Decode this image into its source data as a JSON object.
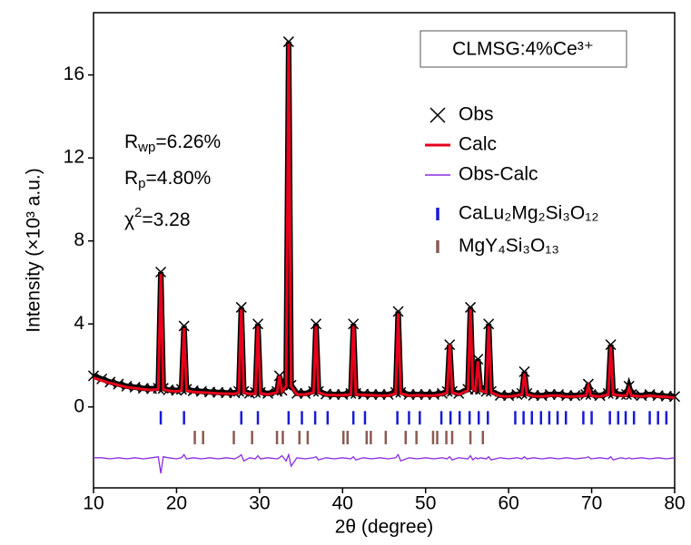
{
  "chart_data": {
    "type": "line",
    "xlabel": "2θ (degree)",
    "ylabel": "Intensity (×10³ a.u.)",
    "sample_label": "CLMSG:4%Ce³⁺",
    "annotations": [
      {
        "main": "R",
        "sub": "wp",
        "text": "=6.26%"
      },
      {
        "main": "R",
        "sub": "p",
        "text": "=4.80%"
      },
      {
        "main": "χ",
        "sup": "2",
        "text": "=3.28"
      }
    ],
    "xlim": [
      10,
      80
    ],
    "xticks": [
      10,
      20,
      30,
      40,
      50,
      60,
      70,
      80
    ],
    "ylim": [
      -3.9,
      19
    ],
    "yticks": [
      0,
      4,
      8,
      12,
      16
    ],
    "legend": "upper right",
    "x": [
      10,
      11,
      12,
      13,
      14,
      15,
      16,
      17,
      17.8,
      18.1,
      18.4,
      19,
      20,
      20.6,
      20.9,
      21.2,
      22,
      23,
      24,
      25,
      26,
      27,
      27.5,
      27.8,
      28.1,
      28.8,
      29.5,
      29.8,
      30.1,
      31,
      32.1,
      32.4,
      32.7,
      33.2,
      33.5,
      33.8,
      34.5,
      35.5,
      36.5,
      36.8,
      37.1,
      38,
      39,
      40,
      41,
      41.3,
      41.6,
      42.5,
      43.5,
      44.5,
      45.5,
      46.4,
      46.7,
      47,
      48,
      49,
      50,
      51,
      52,
      52.6,
      52.9,
      53.2,
      54,
      55.1,
      55.4,
      55.7,
      56,
      56.3,
      56.6,
      57.3,
      57.6,
      57.9,
      59,
      60,
      61,
      61.6,
      61.9,
      62.2,
      63,
      64,
      65,
      66,
      67,
      68,
      69.3,
      69.6,
      69.9,
      71,
      72,
      72.3,
      72.6,
      73.5,
      74.2,
      74.5,
      74.8,
      76,
      77,
      78,
      79,
      80
    ],
    "series": [
      {
        "name": "Obs",
        "color": "#000000",
        "marker": "x",
        "values": [
          1.5,
          1.35,
          1.2,
          1.1,
          1.0,
          0.95,
          0.9,
          0.88,
          0.9,
          6.5,
          0.9,
          0.82,
          0.8,
          0.85,
          3.9,
          0.85,
          0.78,
          0.75,
          0.72,
          0.7,
          0.68,
          0.68,
          0.75,
          4.8,
          0.75,
          0.66,
          0.7,
          4.0,
          0.7,
          0.65,
          0.75,
          1.5,
          0.8,
          1.05,
          17.6,
          1.05,
          0.65,
          0.65,
          0.75,
          4.0,
          0.75,
          0.62,
          0.6,
          0.6,
          0.65,
          4.0,
          0.65,
          0.62,
          0.6,
          0.6,
          0.6,
          0.7,
          4.6,
          0.7,
          0.6,
          0.6,
          0.6,
          0.6,
          0.65,
          0.75,
          3.0,
          0.75,
          0.65,
          0.85,
          4.8,
          0.95,
          0.85,
          2.3,
          0.85,
          0.75,
          4.0,
          0.75,
          0.56,
          0.55,
          0.6,
          0.65,
          1.7,
          0.65,
          0.56,
          0.55,
          0.6,
          0.6,
          0.55,
          0.55,
          0.6,
          1.1,
          0.6,
          0.55,
          0.65,
          3.0,
          0.65,
          0.6,
          0.6,
          1.0,
          0.6,
          0.55,
          0.6,
          0.55,
          0.52,
          0.5
        ]
      },
      {
        "name": "Calc",
        "color": "#e8001c",
        "values": [
          1.4,
          1.27,
          1.15,
          1.05,
          0.95,
          0.9,
          0.85,
          0.82,
          0.85,
          6.4,
          0.85,
          0.78,
          0.75,
          0.8,
          3.8,
          0.8,
          0.72,
          0.7,
          0.68,
          0.65,
          0.64,
          0.63,
          0.7,
          4.7,
          0.7,
          0.62,
          0.65,
          3.9,
          0.65,
          0.6,
          0.7,
          1.5,
          0.75,
          1.0,
          17.5,
          1.0,
          0.6,
          0.6,
          0.7,
          3.9,
          0.7,
          0.58,
          0.57,
          0.56,
          0.6,
          3.9,
          0.6,
          0.58,
          0.56,
          0.55,
          0.55,
          0.65,
          4.5,
          0.65,
          0.55,
          0.56,
          0.55,
          0.55,
          0.6,
          0.7,
          3.0,
          0.7,
          0.6,
          0.8,
          4.7,
          0.9,
          0.8,
          2.2,
          0.8,
          0.7,
          3.9,
          0.7,
          0.52,
          0.5,
          0.55,
          0.6,
          1.6,
          0.6,
          0.52,
          0.5,
          0.55,
          0.55,
          0.5,
          0.5,
          0.55,
          1.0,
          0.55,
          0.5,
          0.6,
          2.9,
          0.6,
          0.55,
          0.55,
          0.9,
          0.55,
          0.5,
          0.55,
          0.5,
          0.48,
          0.45
        ]
      },
      {
        "name": "Obs-Calc",
        "color": "#8a2be2",
        "values": [
          -2.45,
          -2.45,
          -2.5,
          -2.45,
          -2.5,
          -2.45,
          -2.5,
          -2.45,
          -2.4,
          -3.2,
          -2.4,
          -2.45,
          -2.5,
          -2.45,
          -2.3,
          -2.5,
          -2.45,
          -2.5,
          -2.45,
          -2.5,
          -2.45,
          -2.5,
          -2.4,
          -2.3,
          -2.6,
          -2.45,
          -2.5,
          -2.35,
          -2.5,
          -2.45,
          -2.5,
          -2.45,
          -2.35,
          -2.6,
          -2.3,
          -2.85,
          -2.45,
          -2.5,
          -2.45,
          -2.4,
          -2.55,
          -2.45,
          -2.5,
          -2.45,
          -2.5,
          -2.4,
          -2.55,
          -2.45,
          -2.5,
          -2.45,
          -2.5,
          -2.45,
          -2.3,
          -2.6,
          -2.45,
          -2.5,
          -2.45,
          -2.5,
          -2.45,
          -2.5,
          -2.4,
          -2.55,
          -2.45,
          -2.5,
          -2.35,
          -2.55,
          -2.45,
          -2.5,
          -2.45,
          -2.5,
          -2.4,
          -2.55,
          -2.45,
          -2.5,
          -2.45,
          -2.5,
          -2.4,
          -2.5,
          -2.45,
          -2.5,
          -2.45,
          -2.5,
          -2.45,
          -2.5,
          -2.45,
          -2.4,
          -2.5,
          -2.45,
          -2.5,
          -2.4,
          -2.55,
          -2.45,
          -2.5,
          -2.45,
          -2.5,
          -2.45,
          -2.5,
          -2.45,
          -2.5,
          -2.45
        ]
      }
    ],
    "reflections": [
      {
        "name": "CaLu₂Mg₂Si₃O₁₂",
        "color": "#1a1ad6",
        "yrange": [
          -0.2,
          -0.85
        ],
        "positions": [
          18.1,
          20.9,
          27.8,
          29.8,
          33.5,
          35.1,
          36.7,
          38.2,
          41.3,
          42.7,
          46.6,
          48.0,
          49.3,
          51.9,
          53.0,
          54.1,
          55.3,
          56.4,
          57.5,
          60.8,
          61.8,
          62.8,
          63.9,
          64.9,
          65.9,
          66.9,
          69.0,
          70.0,
          72.2,
          73.2,
          74.1,
          75.1,
          77.0,
          78.0,
          79.0
        ]
      },
      {
        "name": "MgY₄Si₃O₁₃",
        "color": "#8b5a52",
        "yrange": [
          -1.15,
          -1.8
        ],
        "positions": [
          22.2,
          23.2,
          26.9,
          29.1,
          32.1,
          32.8,
          34.8,
          35.8,
          40.1,
          40.6,
          42.9,
          43.4,
          45.2,
          47.6,
          48.9,
          50.9,
          51.4,
          52.5,
          53.2,
          55.4,
          56.9
        ]
      }
    ]
  }
}
